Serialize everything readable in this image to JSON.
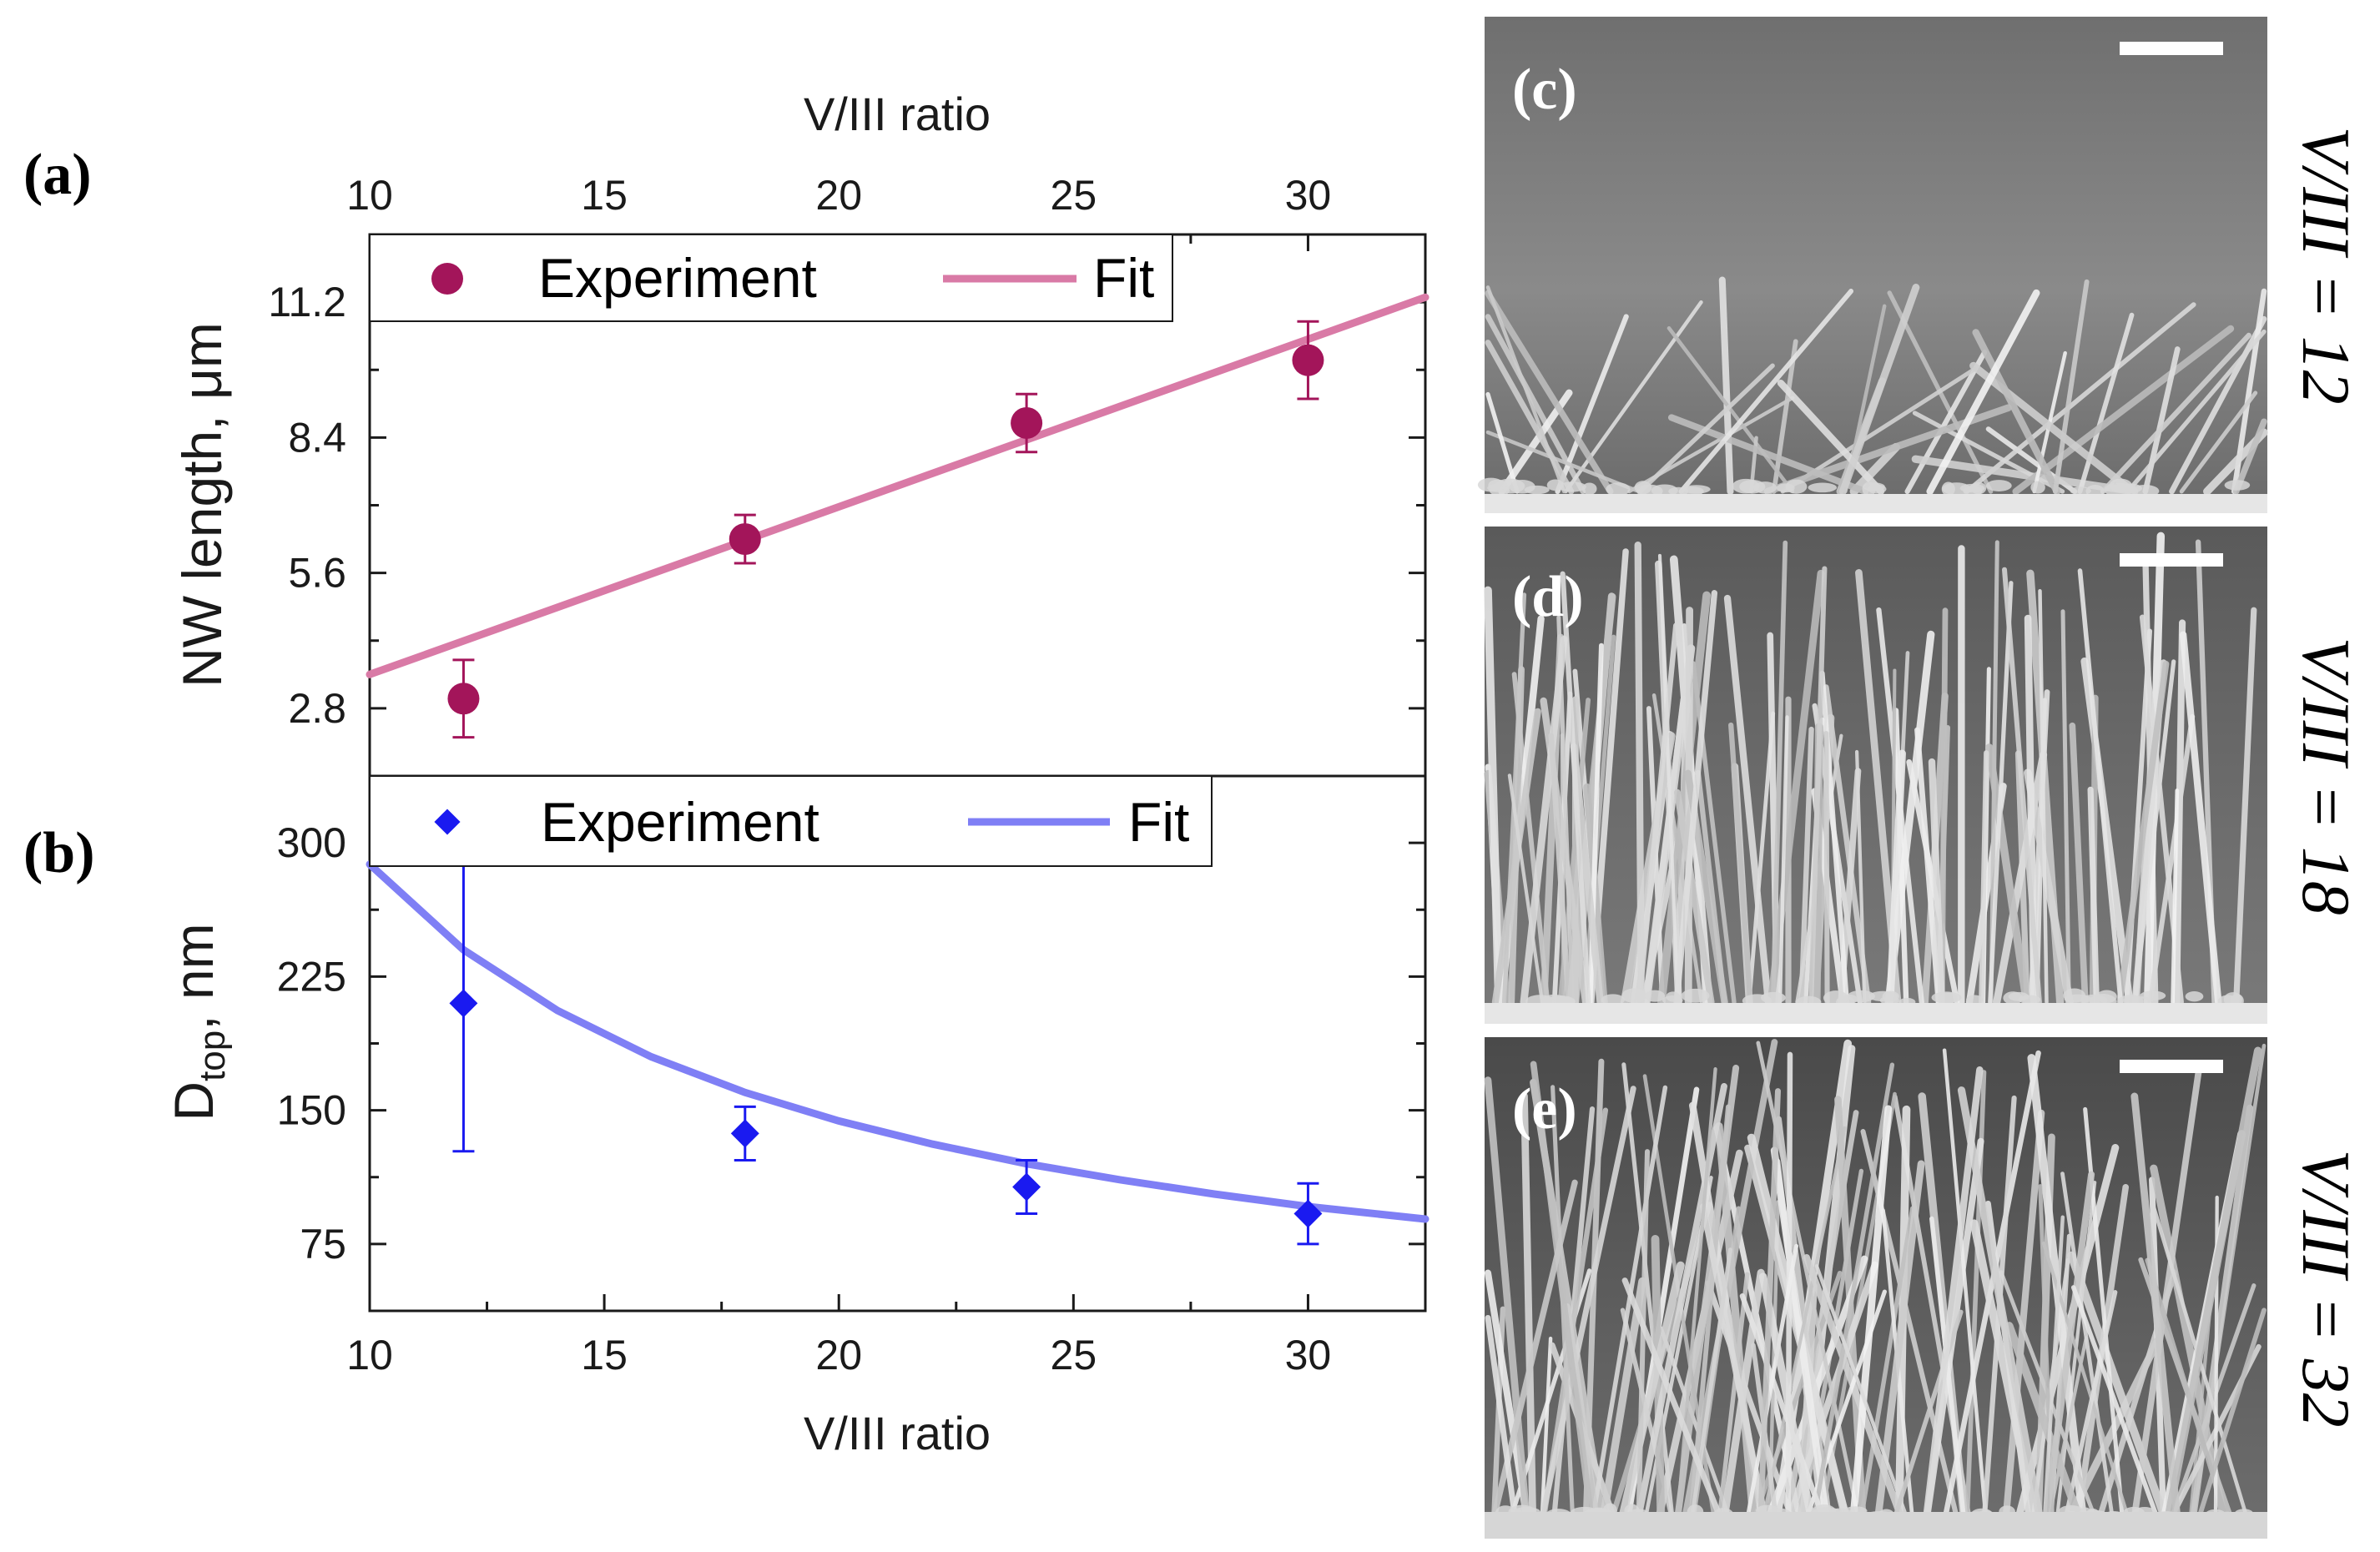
{
  "figure": {
    "panel_labels": {
      "a": "(a)",
      "b": "(b)",
      "c": "(c)",
      "d": "(d)",
      "e": "(e)"
    }
  },
  "chart_data": [
    {
      "panel": "(a)",
      "type": "scatter",
      "x_axis_top_label": "V/III ratio",
      "ylabel": "NW length, μm",
      "xlim": [
        10,
        32.5
      ],
      "ylim": [
        1.4,
        12.6
      ],
      "xticks": [
        10,
        15,
        20,
        25,
        30
      ],
      "xtick_labels": [
        "10",
        "15",
        "20",
        "25",
        "30"
      ],
      "yticks": [
        2.8,
        5.6,
        8.4,
        11.2
      ],
      "ytick_labels": [
        "2.8",
        "5.6",
        "8.4",
        "11.2"
      ],
      "series": [
        {
          "name": "Experiment",
          "kind": "points",
          "marker": "circle",
          "color": "#a3155a",
          "x": [
            12,
            18,
            24,
            30
          ],
          "y": [
            3.0,
            6.3,
            8.7,
            10.0
          ],
          "err": [
            0.8,
            0.5,
            0.6,
            0.8
          ]
        },
        {
          "name": "Fit",
          "kind": "line",
          "color": "#d97aa6",
          "x": [
            10,
            32.5
          ],
          "y": [
            3.5,
            11.3
          ]
        }
      ],
      "legend": [
        "Experiment",
        "Fit"
      ],
      "legend_position": "top-left"
    },
    {
      "panel": "(b)",
      "type": "scatter",
      "xlabel": "V/III ratio",
      "ylabel_main": "D",
      "ylabel_sub": "top",
      "ylabel_tail": ", nm",
      "xlim": [
        10,
        32.5
      ],
      "ylim": [
        37.5,
        337.5
      ],
      "xticks": [
        10,
        15,
        20,
        25,
        30
      ],
      "xtick_labels": [
        "10",
        "15",
        "20",
        "25",
        "30"
      ],
      "yticks": [
        75,
        150,
        225,
        300
      ],
      "ytick_labels": [
        "75",
        "150",
        "225",
        "300"
      ],
      "series": [
        {
          "name": "Experiment",
          "kind": "points",
          "marker": "diamond",
          "color": "#1a1af0",
          "x": [
            12,
            18,
            24,
            30
          ],
          "y": [
            210,
            137,
            107,
            92
          ],
          "err": [
            83,
            15,
            15,
            17
          ]
        },
        {
          "name": "Fit",
          "kind": "curve",
          "color": "#7f7ff5",
          "x": [
            10,
            12,
            14,
            16,
            18,
            20,
            22,
            24,
            26,
            28,
            30,
            32.5
          ],
          "y": [
            288,
            240,
            206,
            180,
            160,
            144,
            131,
            120,
            111,
            103,
            96,
            89
          ]
        }
      ],
      "legend": [
        "Experiment",
        "Fit"
      ],
      "legend_position": "top-left"
    }
  ],
  "sem_images": [
    {
      "panel": "(c)",
      "caption": "V/III = 12"
    },
    {
      "panel": "(d)",
      "caption": "V/III = 18"
    },
    {
      "panel": "(e)",
      "caption": "V/III = 32"
    }
  ]
}
